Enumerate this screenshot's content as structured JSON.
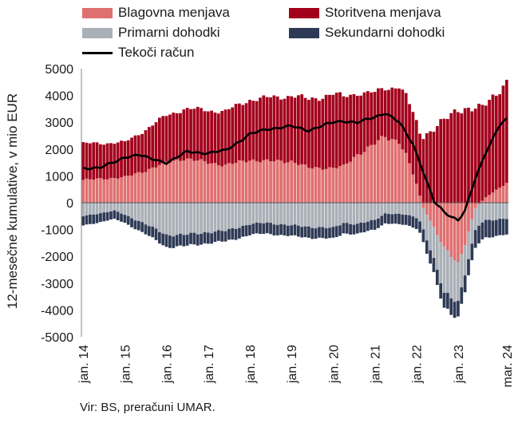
{
  "chart_data": {
    "type": "bar",
    "stacked": true,
    "ylabel": "12-mesečne kumulative, v mio EUR",
    "ylim": [
      -5000,
      5000
    ],
    "yticks": [
      5000,
      4000,
      3000,
      2000,
      1000,
      0,
      -1000,
      -2000,
      -3000,
      -4000,
      -5000
    ],
    "xtick_labels": [
      "jan. 14",
      "jan. 15",
      "jan. 16",
      "jan. 17",
      "jan. 18",
      "jan. 19",
      "jan. 20",
      "jan. 21",
      "jan. 22",
      "jan. 23",
      "mar. 24"
    ],
    "x_start": "2014-01",
    "x_end": "2024-03",
    "grid": false,
    "legend_position": "top",
    "source": "Vir: BS, preračuni UMAR.",
    "series": [
      {
        "name": "Blagovna menjava",
        "color": "#e07070",
        "kind": "bar",
        "keypoints": [
          [
            "2014-01",
            850
          ],
          [
            "2015-01",
            950
          ],
          [
            "2015-07",
            1200
          ],
          [
            "2016-01",
            1500
          ],
          [
            "2016-06",
            1650
          ],
          [
            "2017-01",
            1500
          ],
          [
            "2017-06",
            1400
          ],
          [
            "2018-01",
            1600
          ],
          [
            "2018-06",
            1550
          ],
          [
            "2019-01",
            1550
          ],
          [
            "2019-06",
            1300
          ],
          [
            "2020-01",
            1300
          ],
          [
            "2020-04",
            1350
          ],
          [
            "2020-08",
            1800
          ],
          [
            "2021-01",
            2200
          ],
          [
            "2021-04",
            2450
          ],
          [
            "2021-08",
            2300
          ],
          [
            "2021-10",
            1800
          ],
          [
            "2022-01",
            700
          ],
          [
            "2022-03",
            -200
          ],
          [
            "2022-06",
            -900
          ],
          [
            "2022-09",
            -1700
          ],
          [
            "2023-01",
            -2300
          ],
          [
            "2023-03",
            -1500
          ],
          [
            "2023-06",
            -200
          ],
          [
            "2023-09",
            200
          ],
          [
            "2024-03",
            750
          ]
        ]
      },
      {
        "name": "Storitvena menjava",
        "color": "#a3001b",
        "kind": "bar",
        "keypoints": [
          [
            "2014-01",
            1350
          ],
          [
            "2015-01",
            1300
          ],
          [
            "2016-01",
            1750
          ],
          [
            "2016-06",
            1850
          ],
          [
            "2017-01",
            1950
          ],
          [
            "2017-06",
            2000
          ],
          [
            "2018-01",
            2250
          ],
          [
            "2018-06",
            2350
          ],
          [
            "2019-01",
            2450
          ],
          [
            "2019-06",
            2550
          ],
          [
            "2020-01",
            2750
          ],
          [
            "2020-04",
            2600
          ],
          [
            "2020-08",
            2300
          ],
          [
            "2021-01",
            1900
          ],
          [
            "2021-04",
            1800
          ],
          [
            "2021-10",
            2200
          ],
          [
            "2022-01",
            2300
          ],
          [
            "2022-06",
            2750
          ],
          [
            "2023-01",
            3500
          ],
          [
            "2023-06",
            3500
          ],
          [
            "2023-09",
            3500
          ],
          [
            "2024-03",
            3750
          ]
        ]
      },
      {
        "name": "Primarni dohodki",
        "color": "#aab0b7",
        "kind": "bar",
        "keypoints": [
          [
            "2014-01",
            -500
          ],
          [
            "2014-10",
            -300
          ],
          [
            "2015-01",
            -450
          ],
          [
            "2015-07",
            -800
          ],
          [
            "2016-01",
            -1200
          ],
          [
            "2016-06",
            -1200
          ],
          [
            "2017-01",
            -1100
          ],
          [
            "2017-06",
            -1050
          ],
          [
            "2018-01",
            -800
          ],
          [
            "2018-06",
            -750
          ],
          [
            "2019-01",
            -850
          ],
          [
            "2019-06",
            -900
          ],
          [
            "2020-01",
            -950
          ],
          [
            "2020-04",
            -750
          ],
          [
            "2020-08",
            -800
          ],
          [
            "2021-01",
            -650
          ],
          [
            "2021-04",
            -400
          ],
          [
            "2021-10",
            -450
          ],
          [
            "2022-01",
            -550
          ],
          [
            "2022-06",
            -1200
          ],
          [
            "2022-09",
            -1700
          ],
          [
            "2023-01",
            -1400
          ],
          [
            "2023-04",
            -1000
          ],
          [
            "2023-09",
            -650
          ],
          [
            "2024-03",
            -600
          ]
        ]
      },
      {
        "name": "Sekundarni dohodki",
        "color": "#2e3a55",
        "kind": "bar",
        "keypoints": [
          [
            "2014-01",
            -350
          ],
          [
            "2015-01",
            -300
          ],
          [
            "2016-01",
            -450
          ],
          [
            "2017-01",
            -400
          ],
          [
            "2018-01",
            -400
          ],
          [
            "2019-01",
            -400
          ],
          [
            "2020-01",
            -400
          ],
          [
            "2021-01",
            -350
          ],
          [
            "2022-01",
            -400
          ],
          [
            "2022-06",
            -550
          ],
          [
            "2023-01",
            -600
          ],
          [
            "2023-06",
            -650
          ],
          [
            "2024-03",
            -600
          ]
        ]
      },
      {
        "name": "Tekoči račun",
        "color": "#000000",
        "kind": "line",
        "keypoints": [
          [
            "2014-01",
            1270
          ],
          [
            "2014-06",
            1330
          ],
          [
            "2014-11",
            1550
          ],
          [
            "2015-01",
            1700
          ],
          [
            "2015-05",
            1800
          ],
          [
            "2015-08",
            1650
          ],
          [
            "2016-01",
            1500
          ],
          [
            "2016-03",
            1620
          ],
          [
            "2016-07",
            1900
          ],
          [
            "2017-01",
            1850
          ],
          [
            "2017-06",
            1950
          ],
          [
            "2018-01",
            2550
          ],
          [
            "2018-06",
            2750
          ],
          [
            "2019-01",
            2850
          ],
          [
            "2019-06",
            2700
          ],
          [
            "2020-01",
            3000
          ],
          [
            "2020-04",
            3050
          ],
          [
            "2020-08",
            2980
          ],
          [
            "2021-01",
            3200
          ],
          [
            "2021-04",
            3350
          ],
          [
            "2021-08",
            3000
          ],
          [
            "2021-12",
            2200
          ],
          [
            "2022-03",
            1150
          ],
          [
            "2022-06",
            50
          ],
          [
            "2022-09",
            -350
          ],
          [
            "2023-01",
            -650
          ],
          [
            "2023-03",
            -300
          ],
          [
            "2023-06",
            900
          ],
          [
            "2023-09",
            1900
          ],
          [
            "2024-01",
            2900
          ],
          [
            "2024-03",
            3100
          ]
        ]
      }
    ]
  }
}
